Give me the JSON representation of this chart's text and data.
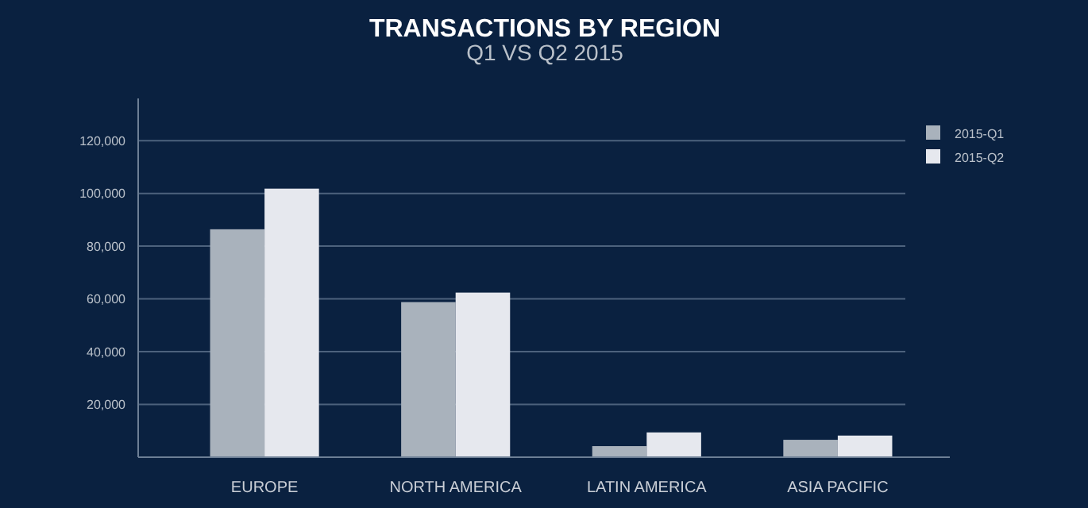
{
  "chart_data": {
    "type": "bar",
    "title": "TRANSACTIONS BY REGION",
    "subtitle": "Q1 VS Q2 2015",
    "categories": [
      "EUROPE",
      "NORTH AMERICA",
      "LATIN AMERICA",
      "ASIA PACIFIC"
    ],
    "series": [
      {
        "name": "2015-Q1",
        "color": "#a9b2bc",
        "values": [
          86400,
          58800,
          4200,
          6600
        ]
      },
      {
        "name": "2015-Q2",
        "color": "#e6e8ee",
        "values": [
          101800,
          62400,
          9400,
          8200
        ]
      }
    ],
    "ylim": [
      0,
      136000
    ],
    "yticks": [
      {
        "value": 20000,
        "label": "20,000"
      },
      {
        "value": 40000,
        "label": "40,000"
      },
      {
        "value": 60000,
        "label": "60,000"
      },
      {
        "value": 80000,
        "label": "80,000"
      },
      {
        "value": 100000,
        "label": "100,000"
      },
      {
        "value": 120000,
        "label": "120,000"
      }
    ],
    "grid": "y",
    "legend": "top right"
  }
}
